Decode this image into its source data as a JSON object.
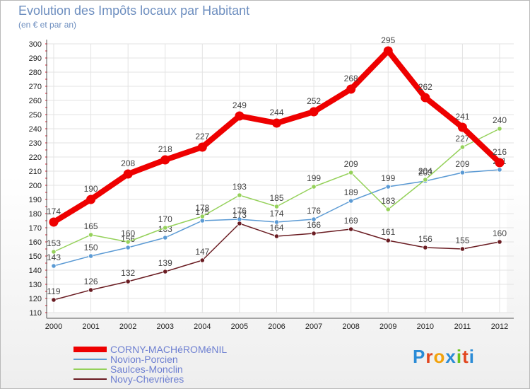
{
  "header": {
    "title": "Evolution des Impôts locaux par Habitant",
    "subtitle": "(en € et par an)"
  },
  "logo": {
    "text": "Proxiti",
    "letters": [
      "P",
      "r",
      "o",
      "x",
      "i",
      "t",
      "i"
    ],
    "colors": [
      "#2a8bd6",
      "#e2461f",
      "#f2a20c",
      "#2a8bd6",
      "#6cc31a",
      "#e2461f",
      "#2a8bd6"
    ]
  },
  "chart_data": {
    "type": "line",
    "title": "Evolution des Impôts locaux par Habitant",
    "ylabel": "(en € et par an)",
    "xlabel": "",
    "x": [
      "2000",
      "2001",
      "2002",
      "2003",
      "2004",
      "2005",
      "2006",
      "2007",
      "2008",
      "2009",
      "2010",
      "2011",
      "2012"
    ],
    "ylim": [
      110,
      300
    ],
    "yticks": [
      110,
      120,
      130,
      140,
      150,
      160,
      170,
      180,
      190,
      200,
      210,
      220,
      230,
      240,
      250,
      260,
      270,
      280,
      290,
      300
    ],
    "grid": true,
    "legend_position": "bottom-left",
    "series": [
      {
        "name": "CORNY-MACHéROMéNIL",
        "color": "#ee0000",
        "values": [
          174,
          190,
          208,
          218,
          227,
          249,
          244,
          252,
          268,
          295,
          262,
          241,
          216
        ],
        "emphasis": true
      },
      {
        "name": "Novion-Porcien",
        "color": "#5b9ad4",
        "values": [
          143,
          150,
          156,
          163,
          175,
          176,
          174,
          176,
          189,
          199,
          203,
          209,
          211
        ]
      },
      {
        "name": "Saulces-Monclin",
        "color": "#95d15a",
        "values": [
          153,
          165,
          160,
          170,
          178,
          193,
          185,
          199,
          209,
          183,
          204,
          227,
          240
        ]
      },
      {
        "name": "Novy-Chevrières",
        "color": "#6a1c22",
        "values": [
          119,
          126,
          132,
          139,
          147,
          173,
          164,
          166,
          169,
          161,
          156,
          155,
          160
        ]
      }
    ]
  }
}
